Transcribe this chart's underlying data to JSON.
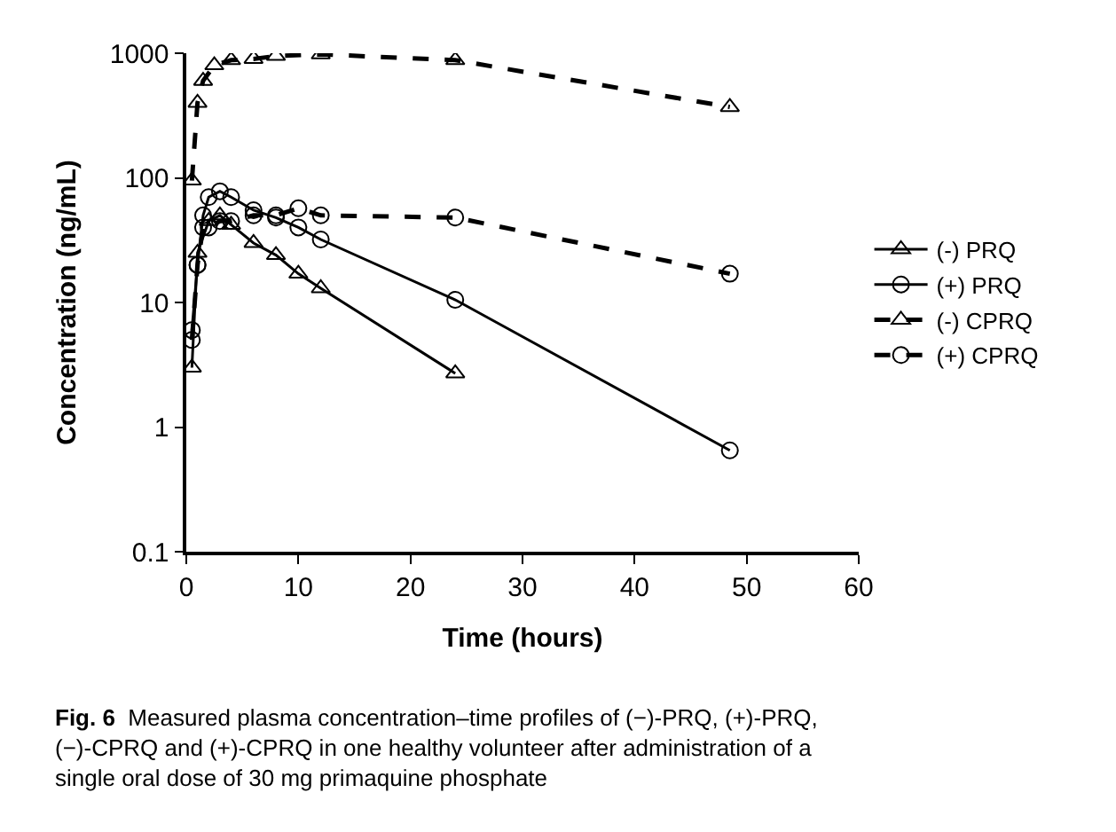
{
  "chart_data": {
    "type": "line",
    "xlabel": "Time (hours)",
    "ylabel": "Concentration (ng/mL)",
    "log": "y",
    "xlim": [
      0,
      60
    ],
    "xticks": [
      0,
      10,
      20,
      30,
      40,
      50,
      60
    ],
    "ylim": [
      0.1,
      1000
    ],
    "yticks": [
      0.1,
      1,
      10,
      100,
      1000
    ],
    "legend": "right",
    "series": [
      {
        "name": "(-) PRQ",
        "color": "#000000",
        "marker": "triangle",
        "line_style": "solid",
        "x": [
          0.5,
          1,
          2,
          3,
          4,
          6,
          8,
          10,
          12,
          24
        ],
        "values": [
          3,
          25,
          45,
          50,
          42,
          30,
          24,
          17,
          13,
          2.7
        ]
      },
      {
        "name": "(+) PRQ",
        "color": "#000000",
        "marker": "circle",
        "line_style": "solid",
        "x": [
          0.5,
          1,
          1.5,
          2,
          3,
          4,
          6,
          8,
          10,
          12,
          24,
          48.5
        ],
        "values": [
          6,
          20,
          50,
          70,
          78,
          70,
          55,
          48,
          40,
          32,
          10.5,
          0.65
        ]
      },
      {
        "name": "(-) CPRQ",
        "color": "#000000",
        "marker": "triangle",
        "line_style": "dashed",
        "x": [
          0.5,
          1,
          1.5,
          2.5,
          4,
          6,
          8,
          12,
          24,
          48.5
        ],
        "values": [
          95,
          400,
          600,
          800,
          880,
          900,
          950,
          980,
          880,
          370
        ]
      },
      {
        "name": "(+) CPRQ",
        "color": "#000000",
        "marker": "circle",
        "line_style": "dashed",
        "x": [
          0.5,
          1,
          1.5,
          2,
          3,
          4,
          6,
          8,
          10,
          12,
          24,
          48.5
        ],
        "values": [
          5,
          20,
          40,
          40,
          45,
          45,
          50,
          50,
          57,
          50,
          48,
          17
        ]
      }
    ],
    "annotations": [
      "Fig. 6  Measured plasma concentration–time profiles of (−)-PRQ, (+)-PRQ, (−)-CPRQ and (+)-CPRQ in one healthy volunteer after administration of a single oral dose of 30 mg primaquine phosphate"
    ]
  }
}
